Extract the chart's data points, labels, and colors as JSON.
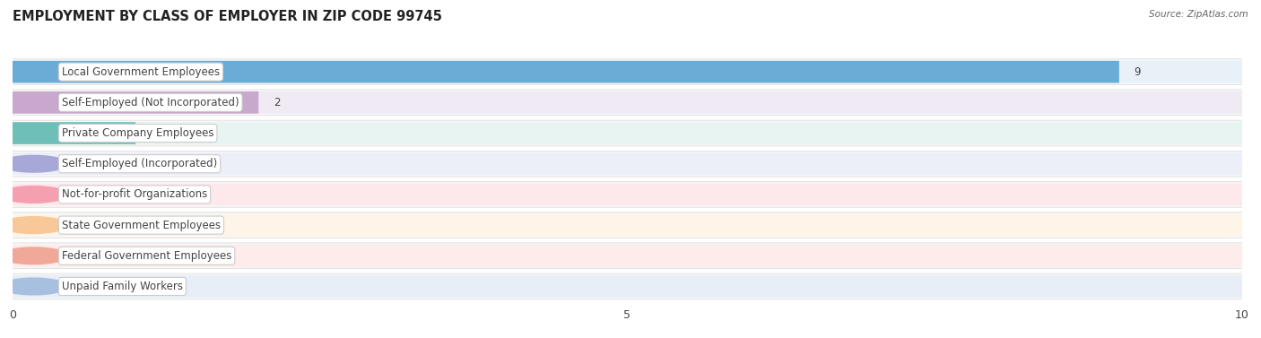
{
  "title": "EMPLOYMENT BY CLASS OF EMPLOYER IN ZIP CODE 99745",
  "source": "Source: ZipAtlas.com",
  "categories": [
    "Local Government Employees",
    "Self-Employed (Not Incorporated)",
    "Private Company Employees",
    "Self-Employed (Incorporated)",
    "Not-for-profit Organizations",
    "State Government Employees",
    "Federal Government Employees",
    "Unpaid Family Workers"
  ],
  "values": [
    9,
    2,
    1,
    0,
    0,
    0,
    0,
    0
  ],
  "bar_colors": [
    "#6aacd5",
    "#c8a8cc",
    "#6dbfb8",
    "#a8a8d8",
    "#f4a0b0",
    "#f8c898",
    "#f0a898",
    "#a8c0e0"
  ],
  "bar_bg_colors": [
    "#e8f0f8",
    "#f0eaf4",
    "#e8f4f2",
    "#eceef8",
    "#fde8ec",
    "#fef4e8",
    "#fdecea",
    "#e8eef8"
  ],
  "row_bg_color": "#f0f0f0",
  "xlim": [
    0,
    10
  ],
  "xticks": [
    0,
    5,
    10
  ],
  "background_color": "#ffffff",
  "bar_height": 0.72,
  "title_fontsize": 10.5,
  "label_fontsize": 8.5,
  "value_fontsize": 8.5
}
